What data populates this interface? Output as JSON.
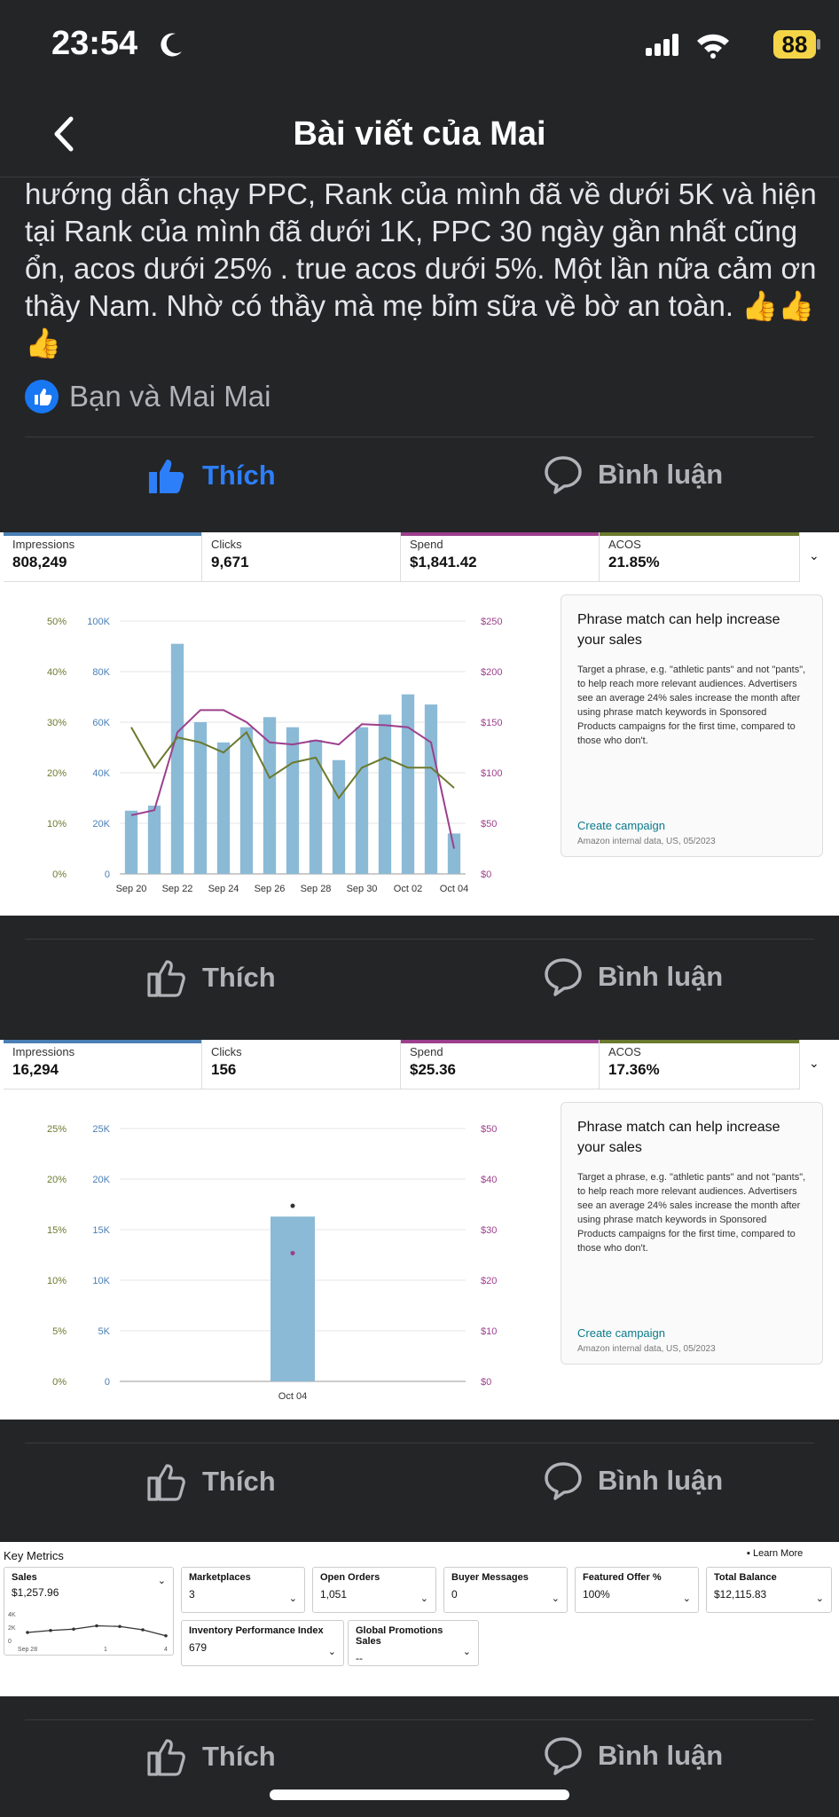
{
  "status": {
    "time": "23:54",
    "battery": "88"
  },
  "header": {
    "title": "Bài viết của Mai"
  },
  "post": {
    "text": "hướng dẫn chạy PPC, Rank của mình đã về dưới 5K và hiện tại Rank của mình đã dưới 1K, PPC 30 ngày gần nhất cũng ổn, acos dưới 25% .  true acos dưới 5%. Một lần nữa cảm ơn thầy Nam. Nhờ có thầy mà mẹ bỉm sữa về bờ an toàn. 👍👍👍",
    "reactions": "Bạn và Mai Mai"
  },
  "actions": {
    "like": "Thích",
    "comment": "Bình luận"
  },
  "colors": {
    "accent": "#2d7ff9",
    "impressions": "#4a7fb5",
    "spend": "#9c3f8c",
    "acos": "#6b7a2e",
    "bar": "#8bbad6"
  },
  "chart1": {
    "metrics": [
      {
        "label": "Impressions",
        "value": "808,249"
      },
      {
        "label": "Clicks",
        "value": "9,671"
      },
      {
        "label": "Spend",
        "value": "$1,841.42"
      },
      {
        "label": "ACOS",
        "value": "21.85%"
      }
    ],
    "promo": {
      "heading": "Phrase match can help increase your sales",
      "body": "Target a phrase, e.g. \"athletic pants\" and not \"pants\", to help reach more relevant audiences. Advertisers see an average 24% sales increase the month after using phrase match keywords in Sponsored Products campaigns for the first time, compared to those who don't.",
      "link": "Create campaign",
      "note": "Amazon internal data, US, 05/2023"
    }
  },
  "chart2": {
    "metrics": [
      {
        "label": "Impressions",
        "value": "16,294"
      },
      {
        "label": "Clicks",
        "value": "156"
      },
      {
        "label": "Spend",
        "value": "$25.36"
      },
      {
        "label": "ACOS",
        "value": "17.36%"
      }
    ],
    "promo": {
      "heading": "Phrase match can help increase your sales",
      "body": "Target a phrase, e.g. \"athletic pants\" and not \"pants\", to help reach more relevant audiences. Advertisers see an average 24% sales increase the month after using phrase match keywords in Sponsored Products campaigns for the first time, compared to those who don't.",
      "link": "Create campaign",
      "note": "Amazon internal data, US, 05/2023"
    }
  },
  "chart_data": [
    {
      "type": "bar",
      "title": "",
      "x_tick_labels": [
        "Sep 20",
        "Sep 22",
        "Sep 24",
        "Sep 26",
        "Sep 28",
        "Sep 30",
        "Oct 02",
        "Oct 04"
      ],
      "y_left_pct_ticks": [
        "50%",
        "40%",
        "30%",
        "20%",
        "10%",
        "0%"
      ],
      "y_left_ticks": [
        "100K",
        "80K",
        "60K",
        "40K",
        "20K",
        "0"
      ],
      "y_right_ticks": [
        "$250",
        "$200",
        "$150",
        "$100",
        "$50",
        "$0"
      ],
      "ylim": [
        0,
        100000
      ],
      "series": [
        {
          "name": "Impressions",
          "kind": "bar",
          "values": [
            25000,
            27000,
            91000,
            60000,
            52000,
            58000,
            62000,
            58000,
            53000,
            45000,
            58000,
            63000,
            71000,
            67000,
            16000
          ]
        },
        {
          "name": "Spend",
          "kind": "line",
          "axis": "right",
          "ylim": [
            0,
            250
          ],
          "values": [
            58,
            63,
            140,
            162,
            162,
            150,
            130,
            128,
            132,
            128,
            148,
            147,
            145,
            130,
            25
          ]
        },
        {
          "name": "ACOS",
          "kind": "line",
          "axis": "left_pct",
          "ylim": [
            0,
            50
          ],
          "values": [
            29,
            21,
            27,
            26,
            24,
            28,
            19,
            22,
            23,
            15,
            21,
            23,
            21,
            21,
            17
          ]
        }
      ]
    },
    {
      "type": "bar",
      "title": "",
      "x_tick_labels": [
        "Oct 04"
      ],
      "y_left_pct_ticks": [
        "25%",
        "20%",
        "15%",
        "10%",
        "5%",
        "0%"
      ],
      "y_left_ticks": [
        "25K",
        "20K",
        "15K",
        "10K",
        "5K",
        "0"
      ],
      "y_right_ticks": [
        "$50",
        "$40",
        "$30",
        "$20",
        "$10",
        "$0"
      ],
      "ylim": [
        0,
        25000
      ],
      "series": [
        {
          "name": "Impressions",
          "kind": "bar",
          "values": [
            16294
          ]
        },
        {
          "name": "Spend",
          "kind": "point",
          "axis": "right",
          "ylim": [
            0,
            50
          ],
          "values": [
            25.36
          ]
        },
        {
          "name": "ACOS",
          "kind": "point",
          "axis": "left_pct",
          "ylim": [
            0,
            25
          ],
          "values": [
            17.36
          ]
        }
      ]
    }
  ],
  "key_metrics": {
    "title": "Key Metrics",
    "learn_more": "Learn More",
    "sales": {
      "label": "Sales",
      "value": "$1,257.96",
      "y_ticks": [
        "4K",
        "2K",
        "0"
      ],
      "x_ticks": [
        "Sep 28",
        "1",
        "4"
      ],
      "values": [
        1200,
        1500,
        1700,
        2200,
        2100,
        1600,
        700
      ]
    },
    "tiles": [
      {
        "label": "Marketplaces",
        "value": "3"
      },
      {
        "label": "Open Orders",
        "value": "1,051"
      },
      {
        "label": "Buyer Messages",
        "value": "0"
      },
      {
        "label": "Featured Offer %",
        "value": "100%"
      },
      {
        "label": "Total Balance",
        "value": "$12,115.83"
      },
      {
        "label": "Inventory Performance Index",
        "value": "679"
      },
      {
        "label": "Global Promotions Sales",
        "value": "--"
      }
    ]
  }
}
